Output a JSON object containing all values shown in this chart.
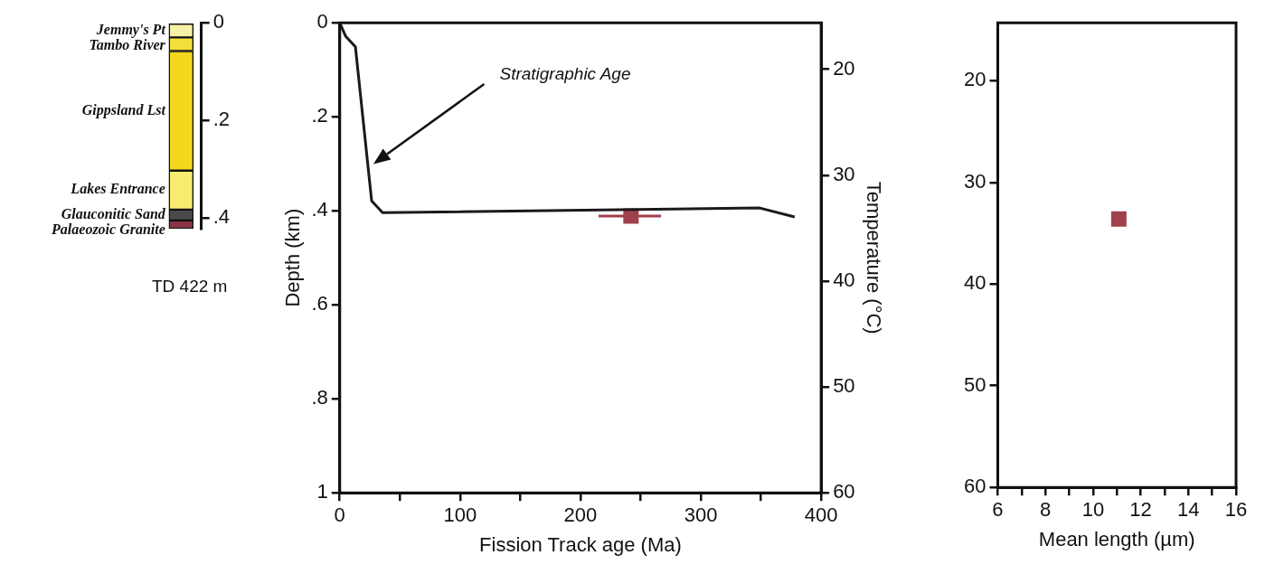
{
  "chart_data": [
    {
      "type": "bar",
      "stacked": true,
      "categories": [
        null
      ],
      "tick_labels": "y",
      "ylim": [
        0.422,
        0
      ],
      "yticks": [
        0,
        {
          "value": 0.2,
          "label": ".2"
        },
        {
          "value": 0.4,
          "label": ".4"
        }
      ],
      "legend": false,
      "annotations": [
        "TD 422 m"
      ],
      "series": [
        {
          "name": "Jemmy's Pt",
          "color": "#f7f0a8",
          "values": [
            0.03
          ]
        },
        {
          "name": "Tambo River",
          "color": "#f3df3a",
          "values": [
            0.028
          ]
        },
        {
          "name": "Gippsland Lst",
          "color": "#f4d81c",
          "values": [
            0.245
          ]
        },
        {
          "name": "Lakes Entrance",
          "color": "#f8ec70",
          "values": [
            0.08
          ]
        },
        {
          "name": "Glauconitic Sand",
          "color": "#4a4a4a",
          "values": [
            0.022
          ]
        },
        {
          "name": "Palaeozoic Granite",
          "color": "#8a3444",
          "values": [
            0.017
          ]
        }
      ]
    },
    {
      "type": "line",
      "xlabel": "Fission Track age (Ma)",
      "ylabel": "Depth (km)",
      "y2label": "Temperature (°C)",
      "xlim": [
        0,
        400
      ],
      "xticks": [
        0,
        {
          "value": 50,
          "label": null
        },
        100,
        {
          "value": 150,
          "label": null
        },
        200,
        {
          "value": 250,
          "label": null
        },
        300,
        {
          "value": 350,
          "label": null
        },
        400
      ],
      "ylim": [
        1,
        0
      ],
      "yticks": [
        0,
        {
          "value": 0.2,
          "label": ".2"
        },
        {
          "value": 0.4,
          "label": ".4"
        },
        {
          "value": 0.6,
          "label": ".6"
        },
        {
          "value": 0.8,
          "label": ".8"
        },
        1
      ],
      "y2lim": [
        60,
        15.6
      ],
      "y2ticks": [
        20,
        30,
        40,
        50,
        60
      ],
      "legend": false,
      "annotations": [
        "Stratigraphic Age"
      ],
      "series": [
        {
          "type": "line",
          "color": "#1a1a1a",
          "marker": "none",
          "x": [
            0,
            5,
            13,
            26.5,
            35.6,
            349,
            378
          ],
          "values": [
            0,
            0.029,
            0.051,
            0.379,
            0.404,
            0.394,
            0.413
          ]
        },
        {
          "type": "scatter",
          "color": "#a0404c",
          "marker": "square",
          "x": [
            242
          ],
          "values": [
            0.411
          ],
          "xerrors": [
            [
              215,
              267
            ]
          ]
        }
      ]
    },
    {
      "type": "scatter",
      "xlabel": "Mean length (µm)",
      "xlim": [
        6,
        16
      ],
      "xticks": [
        6,
        {
          "value": 7,
          "label": null
        },
        8,
        {
          "value": 9,
          "label": null
        },
        10,
        {
          "value": 11,
          "label": null
        },
        12,
        {
          "value": 13,
          "label": null
        },
        14,
        {
          "value": 15,
          "label": null
        },
        16
      ],
      "ylim": [
        60,
        14.3
      ],
      "yticks": [
        20,
        30,
        40,
        50,
        60
      ],
      "legend": false,
      "marker": "square",
      "series": [
        {
          "color": "#a0404c",
          "x": [
            11.08
          ],
          "values": [
            33.6
          ]
        }
      ]
    }
  ]
}
